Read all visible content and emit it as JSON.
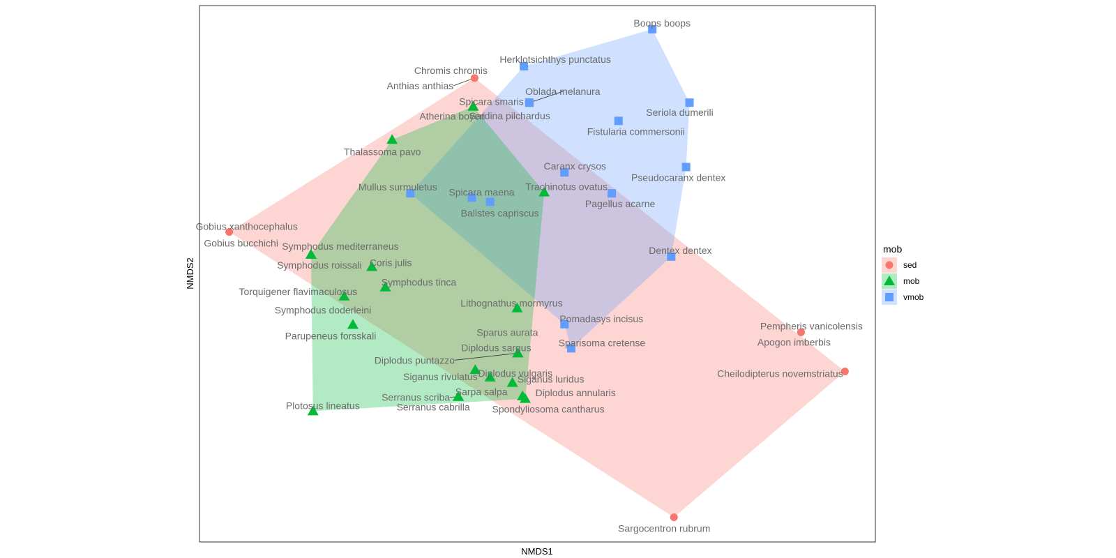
{
  "chart_data": {
    "type": "scatter",
    "xlabel": "NMDS1",
    "ylabel": "NMDS2",
    "xlim": [
      0,
      100
    ],
    "ylim": [
      0,
      100
    ],
    "grid": false,
    "legend": {
      "title": "mob",
      "placement": "right",
      "entries": [
        {
          "key": "sed",
          "label": "sed"
        },
        {
          "key": "mob",
          "label": "mob"
        },
        {
          "key": "vmob",
          "label": "vmob"
        }
      ]
    },
    "groups": {
      "sed": {
        "color": "#F8766D",
        "shape": "circle"
      },
      "mob": {
        "color": "#00BA38",
        "shape": "triangle"
      },
      "vmob": {
        "color": "#619CFF",
        "shape": "square"
      }
    },
    "points": [
      {
        "name": "Boops boops",
        "group": "vmob",
        "x": 67.0,
        "y": 95.6
      },
      {
        "name": "Herklotsichthys punctatus",
        "group": "vmob",
        "x": 48.0,
        "y": 88.7
      },
      {
        "name": "Chromis chromis",
        "group": "sed",
        "x": 40.7,
        "y": 86.5
      },
      {
        "name": "Anthias anthias",
        "group": "sed",
        "x": 40.7,
        "y": 86.5
      },
      {
        "name": "Oblada melanura",
        "group": "vmob",
        "x": 48.8,
        "y": 81.9
      },
      {
        "name": "Spicara smaris",
        "group": "mob",
        "x": 40.5,
        "y": 81.2
      },
      {
        "name": "Atherina boyeri",
        "group": "mob",
        "x": 40.5,
        "y": 81.2
      },
      {
        "name": "Sardina pilchardus",
        "group": "vmob",
        "x": 48.8,
        "y": 81.9
      },
      {
        "name": "Seriola dumerili",
        "group": "vmob",
        "x": 72.5,
        "y": 81.9
      },
      {
        "name": "Fistularia commersonii",
        "group": "vmob",
        "x": 62.0,
        "y": 78.5
      },
      {
        "name": "Thalassoma pavo",
        "group": "mob",
        "x": 28.5,
        "y": 75.0
      },
      {
        "name": "Caranx crysos",
        "group": "vmob",
        "x": 54.0,
        "y": 68.9
      },
      {
        "name": "Pseudocaranx dentex",
        "group": "vmob",
        "x": 72.0,
        "y": 69.9
      },
      {
        "name": "Mullus surmuletus",
        "group": "vmob",
        "x": 31.2,
        "y": 65.0
      },
      {
        "name": "Spicara maena",
        "group": "vmob",
        "x": 40.3,
        "y": 64.2
      },
      {
        "name": "Trachinotus ovatus",
        "group": "mob",
        "x": 51.0,
        "y": 65.2
      },
      {
        "name": "Pagellus acarne",
        "group": "vmob",
        "x": 61.0,
        "y": 65.0
      },
      {
        "name": "Balistes capriscus",
        "group": "vmob",
        "x": 43.0,
        "y": 63.4
      },
      {
        "name": "Gobius xanthocephalus",
        "group": "sed",
        "x": 4.4,
        "y": 57.8
      },
      {
        "name": "Gobius bucchichi",
        "group": "sed",
        "x": 4.4,
        "y": 57.8
      },
      {
        "name": "Dentex dentex",
        "group": "vmob",
        "x": 69.8,
        "y": 53.2
      },
      {
        "name": "Symphodus mediterraneus",
        "group": "mob",
        "x": 16.5,
        "y": 53.6
      },
      {
        "name": "Symphodus roissali",
        "group": "mob",
        "x": 16.5,
        "y": 53.6
      },
      {
        "name": "Coris julis",
        "group": "mob",
        "x": 25.5,
        "y": 51.3
      },
      {
        "name": "Symphodus tinca",
        "group": "mob",
        "x": 27.5,
        "y": 47.5
      },
      {
        "name": "Torquigener flavimaculosus",
        "group": "mob",
        "x": 21.4,
        "y": 45.8
      },
      {
        "name": "Lithognathus mormyrus",
        "group": "mob",
        "x": 47.0,
        "y": 43.6
      },
      {
        "name": "Symphodus doderleini",
        "group": "mob",
        "x": 22.7,
        "y": 40.5
      },
      {
        "name": "Pomadasys incisus",
        "group": "vmob",
        "x": 54.0,
        "y": 40.6
      },
      {
        "name": "Pempheris vanicolensis",
        "group": "sed",
        "x": 89.0,
        "y": 39.1
      },
      {
        "name": "Apogon imberbis",
        "group": "sed",
        "x": 89.0,
        "y": 39.1
      },
      {
        "name": "Sparus aurata",
        "group": "mob",
        "x": 47.1,
        "y": 35.2
      },
      {
        "name": "Sparisoma cretense",
        "group": "vmob",
        "x": 55.0,
        "y": 36.1
      },
      {
        "name": "Diplodus sargus",
        "group": "mob",
        "x": 47.1,
        "y": 35.2
      },
      {
        "name": "Diplodus puntazzo",
        "group": "mob",
        "x": 47.1,
        "y": 35.2
      },
      {
        "name": "Parupeneus forsskali",
        "group": "mob",
        "x": 22.7,
        "y": 40.5
      },
      {
        "name": "Diplodus vulgaris",
        "group": "mob",
        "x": 43.0,
        "y": 30.7
      },
      {
        "name": "Cheilodipterus novemstriatus",
        "group": "sed",
        "x": 95.5,
        "y": 31.8
      },
      {
        "name": "Siganus rivulatus",
        "group": "mob",
        "x": 40.8,
        "y": 32.1
      },
      {
        "name": "Siganus luridus",
        "group": "mob",
        "x": 46.3,
        "y": 29.7
      },
      {
        "name": "Sarpa salpa",
        "group": "mob",
        "x": 38.3,
        "y": 27.1
      },
      {
        "name": "Serranus scriba",
        "group": "mob",
        "x": 38.3,
        "y": 27.1
      },
      {
        "name": "Diplodus annularis",
        "group": "mob",
        "x": 47.8,
        "y": 27.2
      },
      {
        "name": "Serranus cabrilla",
        "group": "mob",
        "x": 38.3,
        "y": 27.1
      },
      {
        "name": "Spondyliosoma cantharus",
        "group": "mob",
        "x": 48.2,
        "y": 26.7
      },
      {
        "name": "Plotosus lineatus",
        "group": "mob",
        "x": 16.8,
        "y": 24.4
      },
      {
        "name": "Sargocentron rubrum",
        "group": "sed",
        "x": 70.2,
        "y": 4.6
      }
    ],
    "hulls": [
      {
        "group": "sed",
        "names": [
          "Chromis chromis",
          "Cheilodipterus novemstriatus",
          "Sargocentron rubrum",
          "Gobius xanthocephalus"
        ]
      },
      {
        "group": "vmob",
        "names": [
          "Boops boops",
          "Seriola dumerili",
          "Pseudocaranx dentex",
          "Dentex dentex",
          "Sparisoma cretense",
          "Pomadasys incisus",
          "Mullus surmuletus",
          "Herklotsichthys punctatus"
        ]
      },
      {
        "group": "mob",
        "names": [
          "Spicara smaris",
          "Trachinotus ovatus",
          "Spondyliosoma cantharus",
          "Plotosus lineatus",
          "Symphodus mediterraneus",
          "Thalassoma pavo"
        ]
      }
    ]
  }
}
